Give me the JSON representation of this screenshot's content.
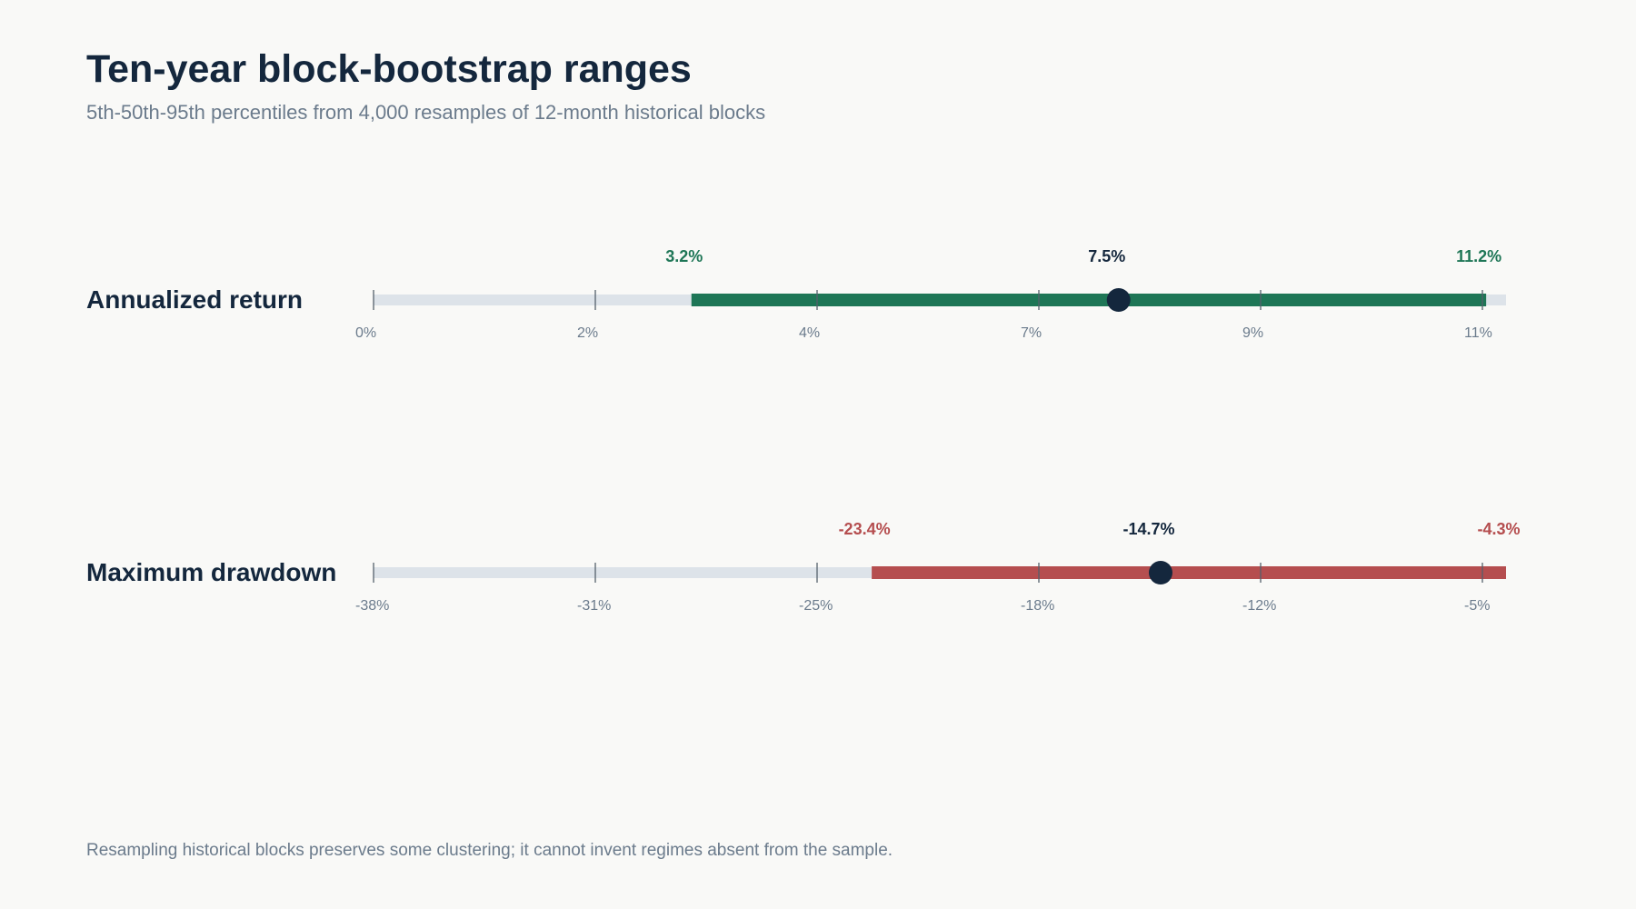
{
  "title": "Ten-year block-bootstrap ranges",
  "subtitle": "5th-50th-95th percentiles from 4,000 resamples of 12-month historical blocks",
  "footnote": "Resampling historical blocks preserves some clustering; it cannot invent regimes absent from the sample.",
  "colors": {
    "background": "#f9f9f7",
    "track": "#dde3e9",
    "positive_range": "#1e7656",
    "negative_range": "#b54e4f",
    "median_marker": "#14273d",
    "tick": "#55606b",
    "tick_label": "#6b7b8c",
    "row_label": "#14273d"
  },
  "chart_data": [
    {
      "type": "range",
      "label": "Annualized return",
      "axis_range": [
        0,
        11.4
      ],
      "tick_labels": [
        "0%",
        "2%",
        "4%",
        "7%",
        "9%",
        "11%"
      ],
      "p5": 3.2,
      "p50": 7.5,
      "p95": 11.2,
      "p5_label": "3.2%",
      "p50_label": "7.5%",
      "p95_label": "11.2%",
      "range_color": "#1e7656"
    },
    {
      "type": "range",
      "label": "Maximum drawdown",
      "axis_range": [
        -38.4,
        -4.3
      ],
      "tick_labels": [
        "-38%",
        "-31%",
        "-25%",
        "-18%",
        "-12%",
        "-5%"
      ],
      "p5": -23.4,
      "p50": -14.7,
      "p95": -4.3,
      "p5_label": "-23.4%",
      "p50_label": "-14.7%",
      "p95_label": "-4.3%",
      "range_color": "#b54e4f"
    }
  ]
}
